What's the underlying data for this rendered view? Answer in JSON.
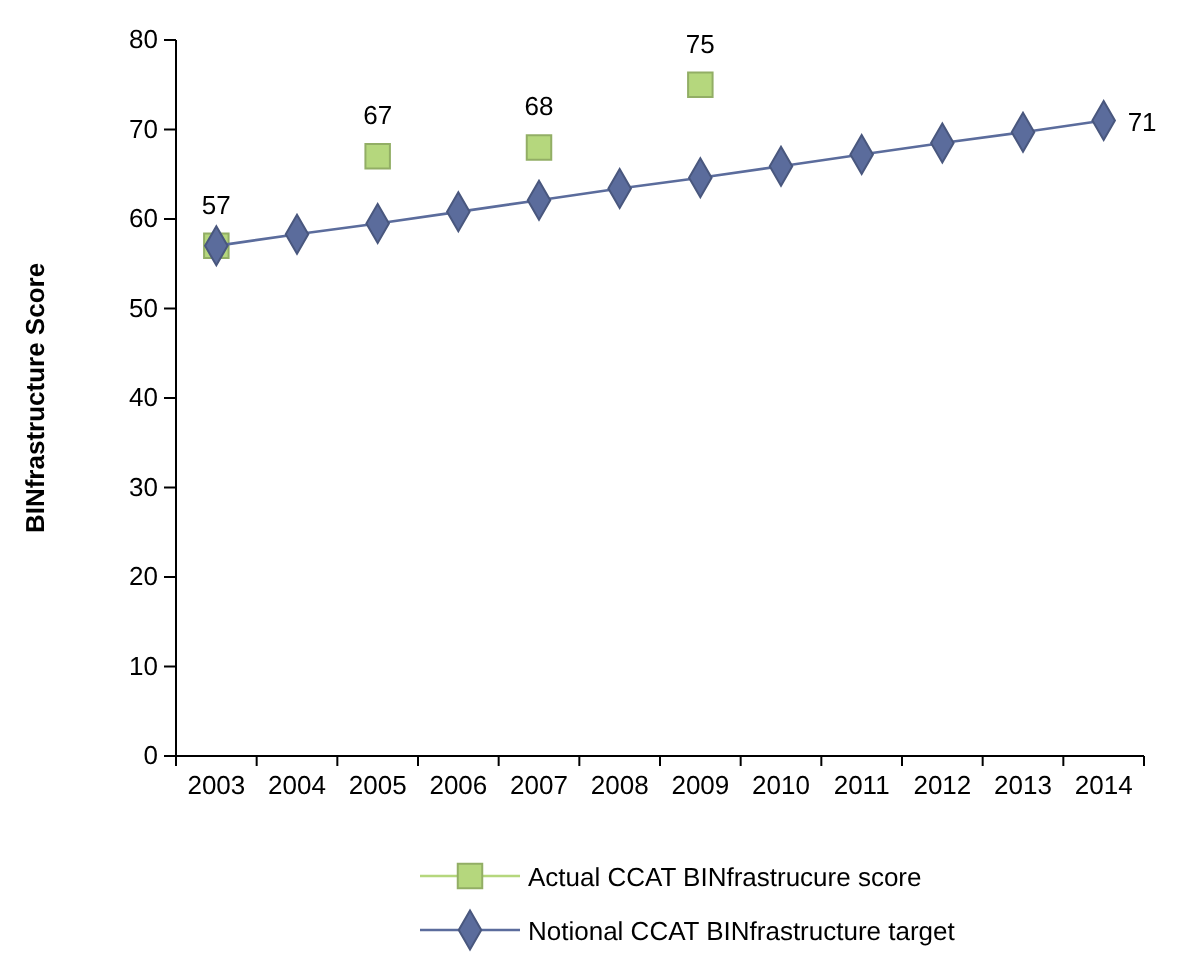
{
  "chart_data": {
    "type": "line",
    "ylabel": "BINfrastructure Score",
    "categories": [
      "2003",
      "2004",
      "2005",
      "2006",
      "2007",
      "2008",
      "2009",
      "2010",
      "2011",
      "2012",
      "2013",
      "2014"
    ],
    "ylim": [
      0,
      80
    ],
    "yticks": [
      0,
      10,
      20,
      30,
      40,
      50,
      60,
      70,
      80
    ],
    "legend": "bottom",
    "series": [
      {
        "name": "Actual CCAT BINfrastrucure score",
        "type": "scatter",
        "marker": "square",
        "color": "#b5d77d",
        "values": [
          57,
          null,
          67,
          null,
          68,
          null,
          75,
          null,
          null,
          null,
          null,
          null
        ],
        "value_labels": [
          "57",
          null,
          "67",
          null,
          "68",
          null,
          "75",
          null,
          null,
          null,
          null,
          null
        ]
      },
      {
        "name": "Notional CCAT BINfrastructure target",
        "marker": "diamond",
        "color": "#5b6c9c",
        "values": [
          57,
          58.3,
          59.5,
          60.8,
          62.1,
          63.4,
          64.6,
          65.9,
          67.2,
          68.5,
          69.7,
          71
        ],
        "value_labels": [
          null,
          null,
          null,
          null,
          null,
          null,
          null,
          null,
          null,
          null,
          null,
          "71"
        ]
      }
    ]
  }
}
